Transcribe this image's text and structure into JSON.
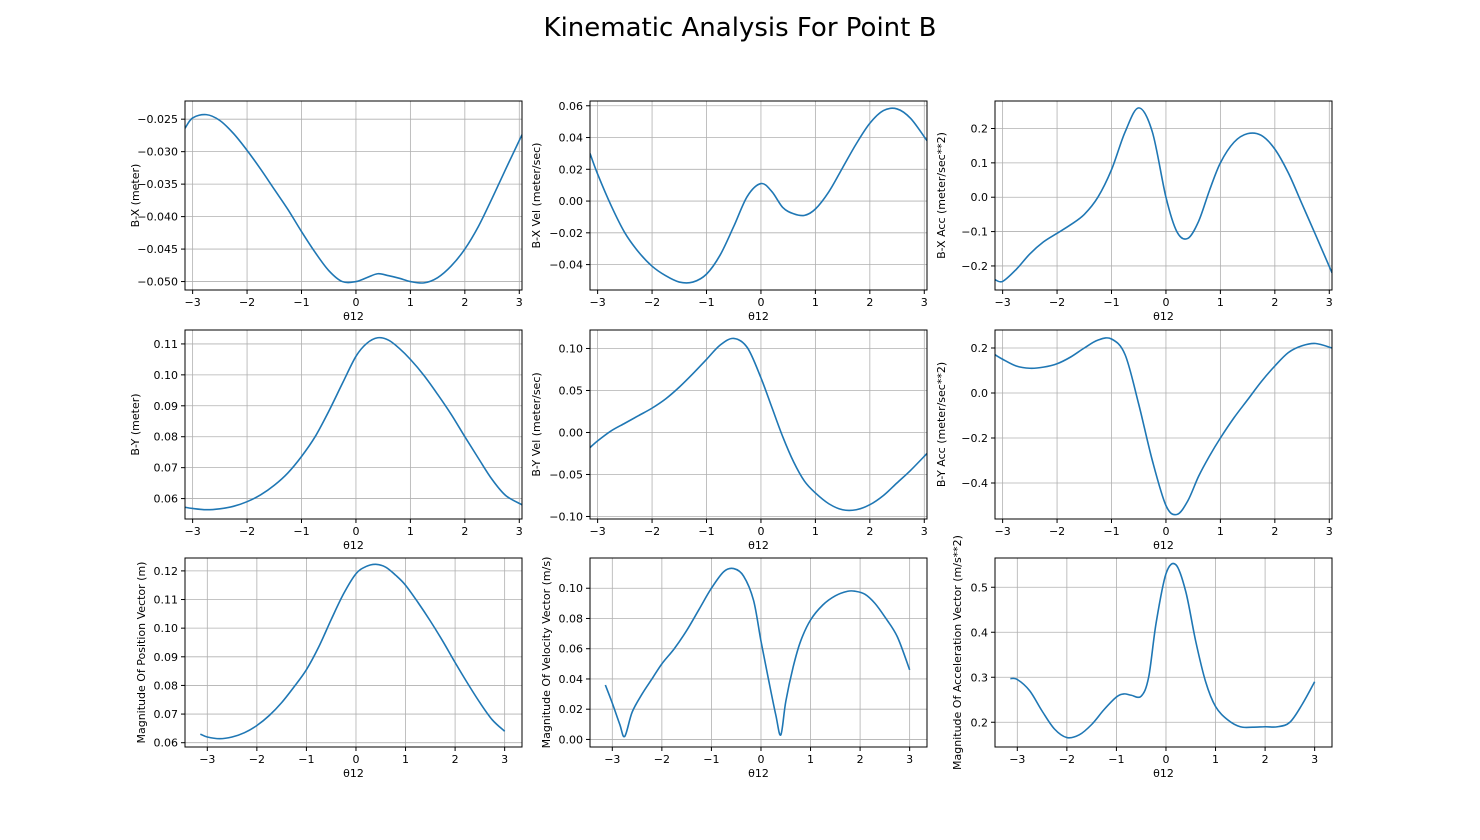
{
  "figure": {
    "title": "Kinematic Analysis For Point B",
    "line_color": "#1f77b4",
    "grid": true
  },
  "chart_data": [
    {
      "type": "line",
      "xlabel": "θ12",
      "ylabel": "B-X (meter)",
      "xlim": [
        -3.14,
        3.05
      ],
      "ylim": [
        -0.0513,
        -0.0222
      ],
      "xticks": [
        -3,
        -2,
        -1,
        0,
        1,
        2,
        3
      ],
      "yticks": [
        -0.05,
        -0.045,
        -0.04,
        -0.035,
        -0.03,
        -0.025
      ],
      "ytick_labels": [
        "−0.050",
        "−0.045",
        "−0.040",
        "−0.035",
        "−0.030",
        "−0.025"
      ],
      "x": [
        -3.14,
        -3.0,
        -2.75,
        -2.5,
        -2.25,
        -2.0,
        -1.75,
        -1.5,
        -1.25,
        -1.0,
        -0.75,
        -0.5,
        -0.25,
        0.0,
        0.2,
        0.4,
        0.6,
        0.8,
        1.0,
        1.25,
        1.5,
        1.75,
        2.0,
        2.25,
        2.5,
        2.75,
        3.05
      ],
      "y": [
        -0.0264,
        -0.0248,
        -0.0243,
        -0.0252,
        -0.0272,
        -0.0298,
        -0.0327,
        -0.0358,
        -0.0389,
        -0.0423,
        -0.0455,
        -0.0483,
        -0.05,
        -0.05,
        -0.0494,
        -0.0488,
        -0.0491,
        -0.0495,
        -0.05,
        -0.0502,
        -0.0494,
        -0.0476,
        -0.045,
        -0.0415,
        -0.0372,
        -0.0327,
        -0.0274
      ]
    },
    {
      "type": "line",
      "xlabel": "θ12",
      "ylabel": "B-X Vel (meter/sec)",
      "xlim": [
        -3.14,
        3.05
      ],
      "ylim": [
        -0.056,
        0.063
      ],
      "xticks": [
        -3,
        -2,
        -1,
        0,
        1,
        2,
        3
      ],
      "yticks": [
        -0.04,
        -0.02,
        0.0,
        0.02,
        0.04,
        0.06
      ],
      "ytick_labels": [
        "−0.04",
        "−0.02",
        "0.00",
        "0.02",
        "0.04",
        "0.06"
      ],
      "x": [
        -3.14,
        -3.0,
        -2.75,
        -2.5,
        -2.25,
        -2.0,
        -1.75,
        -1.5,
        -1.25,
        -1.0,
        -0.75,
        -0.5,
        -0.25,
        0.0,
        0.2,
        0.4,
        0.6,
        0.8,
        1.0,
        1.25,
        1.5,
        1.75,
        2.0,
        2.25,
        2.5,
        2.75,
        3.05
      ],
      "y": [
        0.03,
        0.017,
        -0.003,
        -0.02,
        -0.032,
        -0.041,
        -0.047,
        -0.051,
        -0.051,
        -0.046,
        -0.034,
        -0.016,
        0.003,
        0.011,
        0.006,
        -0.004,
        -0.008,
        -0.009,
        -0.005,
        0.006,
        0.021,
        0.036,
        0.049,
        0.057,
        0.058,
        0.052,
        0.038
      ]
    },
    {
      "type": "line",
      "xlabel": "θ12",
      "ylabel": "B-X Acc (meter/sec**2)",
      "xlim": [
        -3.14,
        3.05
      ],
      "ylim": [
        -0.27,
        0.28
      ],
      "xticks": [
        -3,
        -2,
        -1,
        0,
        1,
        2,
        3
      ],
      "yticks": [
        -0.2,
        -0.1,
        0.0,
        0.1,
        0.2
      ],
      "ytick_labels": [
        "−0.2",
        "−0.1",
        "0.0",
        "0.1",
        "0.2"
      ],
      "x": [
        -3.14,
        -3.0,
        -2.75,
        -2.5,
        -2.25,
        -2.0,
        -1.75,
        -1.5,
        -1.25,
        -1.0,
        -0.75,
        -0.5,
        -0.25,
        0.0,
        0.2,
        0.4,
        0.6,
        0.8,
        1.0,
        1.25,
        1.5,
        1.75,
        2.0,
        2.25,
        2.5,
        2.75,
        3.05
      ],
      "y": [
        -0.24,
        -0.245,
        -0.21,
        -0.165,
        -0.13,
        -0.105,
        -0.08,
        -0.05,
        0.0,
        0.08,
        0.19,
        0.26,
        0.19,
        0.0,
        -0.1,
        -0.12,
        -0.07,
        0.02,
        0.1,
        0.16,
        0.185,
        0.18,
        0.14,
        0.07,
        -0.02,
        -0.11,
        -0.22
      ]
    },
    {
      "type": "line",
      "xlabel": "θ12",
      "ylabel": "B-Y (meter)",
      "xlim": [
        -3.14,
        3.05
      ],
      "ylim": [
        0.0534,
        0.1145
      ],
      "xticks": [
        -3,
        -2,
        -1,
        0,
        1,
        2,
        3
      ],
      "yticks": [
        0.06,
        0.07,
        0.08,
        0.09,
        0.1,
        0.11
      ],
      "ytick_labels": [
        "0.06",
        "0.07",
        "0.08",
        "0.09",
        "0.10",
        "0.11"
      ],
      "x": [
        -3.14,
        -3.0,
        -2.75,
        -2.5,
        -2.25,
        -2.0,
        -1.75,
        -1.5,
        -1.25,
        -1.0,
        -0.75,
        -0.5,
        -0.25,
        0.0,
        0.2,
        0.4,
        0.6,
        0.8,
        1.0,
        1.25,
        1.5,
        1.75,
        2.0,
        2.25,
        2.5,
        2.75,
        3.05
      ],
      "y": [
        0.0572,
        0.0568,
        0.0564,
        0.0567,
        0.0575,
        0.059,
        0.0612,
        0.0643,
        0.0683,
        0.0736,
        0.08,
        0.0882,
        0.0972,
        0.106,
        0.1102,
        0.112,
        0.1112,
        0.1085,
        0.105,
        0.0998,
        0.0937,
        0.0872,
        0.08,
        0.073,
        0.0662,
        0.061,
        0.058
      ]
    },
    {
      "type": "line",
      "xlabel": "θ12",
      "ylabel": "B-Y Vel (meter/sec)",
      "xlim": [
        -3.14,
        3.05
      ],
      "ylim": [
        -0.103,
        0.122
      ],
      "xticks": [
        -3,
        -2,
        -1,
        0,
        1,
        2,
        3
      ],
      "yticks": [
        -0.1,
        -0.05,
        0.0,
        0.05,
        0.1
      ],
      "ytick_labels": [
        "−0.10",
        "−0.05",
        "0.00",
        "0.05",
        "0.10"
      ],
      "x": [
        -3.14,
        -3.0,
        -2.75,
        -2.5,
        -2.25,
        -2.0,
        -1.75,
        -1.5,
        -1.25,
        -1.0,
        -0.75,
        -0.5,
        -0.25,
        0.0,
        0.2,
        0.4,
        0.6,
        0.8,
        1.0,
        1.25,
        1.5,
        1.75,
        2.0,
        2.25,
        2.5,
        2.75,
        3.05
      ],
      "y": [
        -0.018,
        -0.01,
        0.002,
        0.011,
        0.02,
        0.029,
        0.04,
        0.054,
        0.07,
        0.087,
        0.104,
        0.112,
        0.101,
        0.065,
        0.03,
        -0.005,
        -0.035,
        -0.058,
        -0.072,
        -0.085,
        -0.092,
        -0.092,
        -0.086,
        -0.075,
        -0.06,
        -0.045,
        -0.025
      ]
    },
    {
      "type": "line",
      "xlabel": "θ12",
      "ylabel": "B-Y Acc (meter/sec**2)",
      "xlim": [
        -3.14,
        3.05
      ],
      "ylim": [
        -0.56,
        0.28
      ],
      "xticks": [
        -3,
        -2,
        -1,
        0,
        1,
        2,
        3
      ],
      "yticks": [
        -0.4,
        -0.2,
        0.0,
        0.2
      ],
      "ytick_labels": [
        "−0.4",
        "−0.2",
        "0.0",
        "0.2"
      ],
      "x": [
        -3.14,
        -3.0,
        -2.75,
        -2.5,
        -2.25,
        -2.0,
        -1.75,
        -1.5,
        -1.25,
        -1.0,
        -0.75,
        -0.5,
        -0.25,
        0.0,
        0.2,
        0.4,
        0.6,
        0.8,
        1.0,
        1.25,
        1.5,
        1.75,
        2.0,
        2.25,
        2.5,
        2.75,
        3.05
      ],
      "y": [
        0.17,
        0.15,
        0.12,
        0.11,
        0.115,
        0.13,
        0.16,
        0.2,
        0.235,
        0.24,
        0.17,
        -0.05,
        -0.3,
        -0.5,
        -0.54,
        -0.48,
        -0.37,
        -0.28,
        -0.2,
        -0.11,
        -0.03,
        0.05,
        0.12,
        0.18,
        0.21,
        0.22,
        0.2
      ]
    },
    {
      "type": "line",
      "xlabel": "θ12",
      "ylabel": "Magnitude Of Position Vector (m)",
      "xlim": [
        -3.45,
        3.35
      ],
      "ylim": [
        0.0585,
        0.1245
      ],
      "xticks": [
        -3,
        -2,
        -1,
        0,
        1,
        2,
        3
      ],
      "yticks": [
        0.06,
        0.07,
        0.08,
        0.09,
        0.1,
        0.11,
        0.12
      ],
      "ytick_labels": [
        "0.06",
        "0.07",
        "0.08",
        "0.09",
        "0.10",
        "0.11",
        "0.12"
      ],
      "x": [
        -3.14,
        -3.0,
        -2.75,
        -2.5,
        -2.25,
        -2.0,
        -1.75,
        -1.5,
        -1.25,
        -1.0,
        -0.75,
        -0.5,
        -0.25,
        0.0,
        0.2,
        0.4,
        0.6,
        0.8,
        1.0,
        1.25,
        1.5,
        1.75,
        2.0,
        2.25,
        2.5,
        2.75,
        3.0
      ],
      "y": [
        0.063,
        0.062,
        0.0614,
        0.062,
        0.0635,
        0.066,
        0.0695,
        0.074,
        0.0795,
        0.0855,
        0.0935,
        0.103,
        0.112,
        0.119,
        0.1215,
        0.1223,
        0.1213,
        0.1185,
        0.115,
        0.109,
        0.1025,
        0.0955,
        0.088,
        0.0808,
        0.074,
        0.068,
        0.064
      ]
    },
    {
      "type": "line",
      "xlabel": "θ12",
      "ylabel": "Magnitude Of Velocity Vector (m/s)",
      "xlim": [
        -3.45,
        3.35
      ],
      "ylim": [
        -0.005,
        0.12
      ],
      "xticks": [
        -3,
        -2,
        -1,
        0,
        1,
        2,
        3
      ],
      "yticks": [
        0.0,
        0.02,
        0.04,
        0.06,
        0.08,
        0.1
      ],
      "ytick_labels": [
        "0.00",
        "0.02",
        "0.04",
        "0.06",
        "0.08",
        "0.10"
      ],
      "x": [
        -3.14,
        -3.0,
        -2.85,
        -2.75,
        -2.6,
        -2.4,
        -2.2,
        -2.0,
        -1.75,
        -1.5,
        -1.25,
        -1.0,
        -0.75,
        -0.55,
        -0.35,
        -0.15,
        0.0,
        0.15,
        0.3,
        0.4,
        0.5,
        0.65,
        0.8,
        1.0,
        1.25,
        1.5,
        1.75,
        1.9,
        2.1,
        2.3,
        2.5,
        2.75,
        3.0
      ],
      "y": [
        0.036,
        0.024,
        0.01,
        0.002,
        0.018,
        0.03,
        0.04,
        0.05,
        0.06,
        0.072,
        0.086,
        0.1,
        0.111,
        0.113,
        0.108,
        0.092,
        0.065,
        0.04,
        0.016,
        0.003,
        0.025,
        0.048,
        0.065,
        0.079,
        0.089,
        0.095,
        0.098,
        0.098,
        0.096,
        0.09,
        0.081,
        0.068,
        0.046
      ]
    },
    {
      "type": "line",
      "xlabel": "θ12",
      "ylabel": "Magnitude Of Acceleration Vector (m/s**2)",
      "xlim": [
        -3.45,
        3.35
      ],
      "ylim": [
        0.145,
        0.565
      ],
      "xticks": [
        -3,
        -2,
        -1,
        0,
        1,
        2,
        3
      ],
      "yticks": [
        0.2,
        0.3,
        0.4,
        0.5
      ],
      "ytick_labels": [
        "0.2",
        "0.3",
        "0.4",
        "0.5"
      ],
      "x": [
        -3.14,
        -3.0,
        -2.75,
        -2.5,
        -2.25,
        -2.0,
        -1.75,
        -1.5,
        -1.25,
        -1.0,
        -0.85,
        -0.7,
        -0.5,
        -0.35,
        -0.2,
        0.0,
        0.2,
        0.4,
        0.6,
        0.8,
        1.0,
        1.25,
        1.5,
        1.75,
        2.0,
        2.25,
        2.5,
        2.75,
        3.0
      ],
      "y": [
        0.297,
        0.295,
        0.27,
        0.225,
        0.185,
        0.166,
        0.172,
        0.195,
        0.228,
        0.256,
        0.263,
        0.26,
        0.258,
        0.3,
        0.42,
        0.53,
        0.55,
        0.49,
        0.38,
        0.29,
        0.235,
        0.205,
        0.19,
        0.189,
        0.19,
        0.19,
        0.2,
        0.24,
        0.29
      ]
    }
  ]
}
